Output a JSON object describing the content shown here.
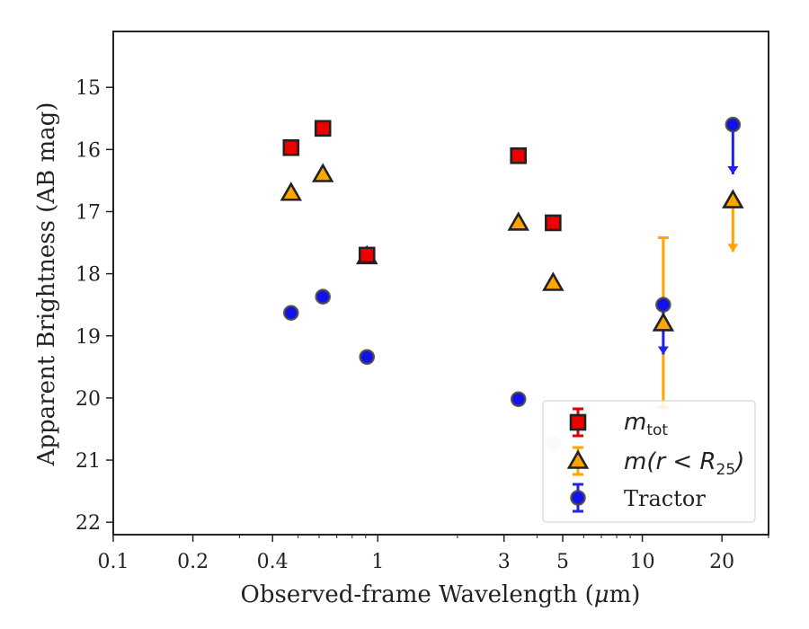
{
  "chart_data": {
    "type": "scatter",
    "title": "",
    "xlabel_pre": "Observed-frame Wavelength (",
    "xlabel_mu": "μ",
    "xlabel_post": "m)",
    "ylabel": "Apparent Brightness (AB mag)",
    "xscale": "log",
    "xlim": [
      0.1,
      30
    ],
    "ylim": [
      22.2,
      14.1
    ],
    "y_inverted": true,
    "x_ticks": [
      {
        "value": 0.1,
        "label": "0.1"
      },
      {
        "value": 0.2,
        "label": "0.2"
      },
      {
        "value": 0.4,
        "label": "0.4"
      },
      {
        "value": 1,
        "label": "1"
      },
      {
        "value": 3,
        "label": "3"
      },
      {
        "value": 5,
        "label": "5"
      },
      {
        "value": 10,
        "label": "10"
      },
      {
        "value": 20,
        "label": "20"
      }
    ],
    "y_ticks": [
      {
        "value": 15,
        "label": "15"
      },
      {
        "value": 16,
        "label": "16"
      },
      {
        "value": 17,
        "label": "17"
      },
      {
        "value": 18,
        "label": "18"
      },
      {
        "value": 19,
        "label": "19"
      },
      {
        "value": 20,
        "label": "20"
      },
      {
        "value": 21,
        "label": "21"
      },
      {
        "value": 22,
        "label": "22"
      }
    ],
    "legend_position": "lower right",
    "series": [
      {
        "key": "mtot",
        "legend_main": "m",
        "legend_sub": "tot",
        "marker": "square",
        "face_color": "#ee0000",
        "error_color": "#dd0000",
        "points": [
          {
            "x": 0.47,
            "y": 15.97
          },
          {
            "x": 0.62,
            "y": 15.66
          },
          {
            "x": 0.91,
            "y": 17.7
          },
          {
            "x": 3.4,
            "y": 16.1
          },
          {
            "x": 4.6,
            "y": 17.18
          }
        ]
      },
      {
        "key": "mr25",
        "legend_main": "m(r < R",
        "legend_sub": "25",
        "legend_tail": ")",
        "marker": "triangle",
        "face_color": "#ffa500",
        "error_color": "#ffa500",
        "points": [
          {
            "x": 0.47,
            "y": 16.7
          },
          {
            "x": 0.62,
            "y": 16.4
          },
          {
            "x": 0.91,
            "y": 17.72
          },
          {
            "x": 3.4,
            "y": 17.18
          },
          {
            "x": 4.6,
            "y": 18.15
          },
          {
            "x": 12,
            "y": 18.8,
            "yerr_low": 17.42,
            "yerr_high": 20.15
          },
          {
            "x": 22,
            "y": 16.82,
            "upper_limit": true,
            "arrow_to": 17.65
          }
        ]
      },
      {
        "key": "tractor",
        "legend_main": "Tractor",
        "marker": "circle",
        "face_color": "#1111ee",
        "error_color": "#2222ee",
        "points": [
          {
            "x": 0.47,
            "y": 18.63
          },
          {
            "x": 0.62,
            "y": 18.37
          },
          {
            "x": 0.91,
            "y": 19.34
          },
          {
            "x": 3.4,
            "y": 20.02
          },
          {
            "x": 4.6,
            "y": 20.73,
            "faded": true
          },
          {
            "x": 12,
            "y": 18.5,
            "upper_limit": true,
            "arrow_to": 19.3
          },
          {
            "x": 22,
            "y": 15.6,
            "upper_limit": true,
            "arrow_to": 16.4
          }
        ]
      }
    ]
  }
}
